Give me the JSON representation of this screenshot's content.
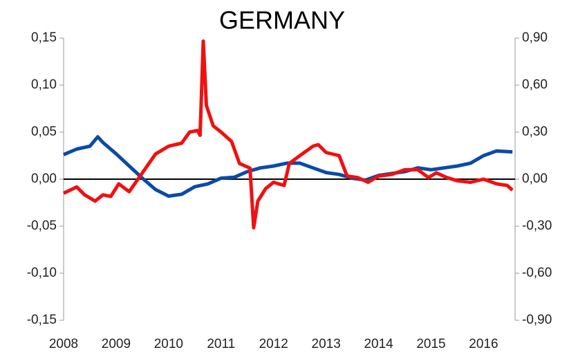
{
  "chart_data": {
    "type": "line",
    "title": "GERMANY",
    "xlim": [
      2008,
      2016.6
    ],
    "xticks": [
      2008,
      2009,
      2010,
      2011,
      2012,
      2013,
      2014,
      2015,
      2016
    ],
    "ylim": [
      -0.15,
      0.15
    ],
    "yticks": [
      {
        "value": -0.15,
        "label": "-0,15"
      },
      {
        "value": -0.1,
        "label": "-0,10"
      },
      {
        "value": -0.05,
        "label": "-0,05"
      },
      {
        "value": 0,
        "label": "0,00"
      },
      {
        "value": 0.05,
        "label": "0,05"
      },
      {
        "value": 0.1,
        "label": "0,10"
      },
      {
        "value": 0.15,
        "label": "0,15"
      }
    ],
    "y2lim": [
      -0.9,
      0.9
    ],
    "y2ticks": [
      {
        "value": -0.9,
        "label": "-0,90"
      },
      {
        "value": -0.6,
        "label": "-0,60"
      },
      {
        "value": -0.3,
        "label": "-0,30"
      },
      {
        "value": 0,
        "label": "0,00"
      },
      {
        "value": 0.3,
        "label": "0,30"
      },
      {
        "value": 0.6,
        "label": "0,60"
      },
      {
        "value": 0.9,
        "label": "0,90"
      }
    ],
    "series": [
      {
        "color": "#0b4aa8",
        "axis": "y",
        "x": [
          2008.0,
          2008.25,
          2008.5,
          2008.65,
          2008.75,
          2009.0,
          2009.25,
          2009.5,
          2009.75,
          2010.0,
          2010.25,
          2010.5,
          2010.75,
          2011.0,
          2011.25,
          2011.5,
          2011.75,
          2012.0,
          2012.25,
          2012.5,
          2012.75,
          2013.0,
          2013.25,
          2013.5,
          2013.75,
          2014.0,
          2014.25,
          2014.5,
          2014.75,
          2015.0,
          2015.25,
          2015.5,
          2015.75,
          2016.0,
          2016.25,
          2016.55
        ],
        "values": [
          0.026,
          0.032,
          0.035,
          0.045,
          0.039,
          0.027,
          0.014,
          0.001,
          -0.011,
          -0.018,
          -0.016,
          -0.008,
          -0.005,
          0.001,
          0.002,
          0.008,
          0.012,
          0.014,
          0.017,
          0.017,
          0.012,
          0.007,
          0.005,
          0.001,
          -0.001,
          0.004,
          0.006,
          0.008,
          0.012,
          0.01,
          0.012,
          0.014,
          0.017,
          0.025,
          0.03,
          0.029
        ]
      },
      {
        "color": "#f01010",
        "axis": "y2",
        "x": [
          2008.0,
          2008.25,
          2008.4,
          2008.6,
          2008.75,
          2008.9,
          2009.05,
          2009.25,
          2009.5,
          2009.75,
          2010.0,
          2010.25,
          2010.4,
          2010.55,
          2010.6,
          2010.66,
          2010.72,
          2010.85,
          2011.0,
          2011.2,
          2011.35,
          2011.55,
          2011.62,
          2011.7,
          2011.85,
          2012.0,
          2012.2,
          2012.3,
          2012.5,
          2012.75,
          2012.85,
          2013.0,
          2013.25,
          2013.4,
          2013.6,
          2013.8,
          2014.0,
          2014.25,
          2014.5,
          2014.75,
          2014.95,
          2015.1,
          2015.3,
          2015.5,
          2015.75,
          2016.0,
          2016.25,
          2016.45,
          2016.55
        ],
        "values": [
          -0.09,
          -0.05,
          -0.1,
          -0.14,
          -0.1,
          -0.11,
          -0.03,
          -0.08,
          0.04,
          0.16,
          0.21,
          0.23,
          0.3,
          0.31,
          0.28,
          0.88,
          0.47,
          0.34,
          0.3,
          0.24,
          0.1,
          0.07,
          -0.31,
          -0.14,
          -0.06,
          -0.02,
          -0.04,
          0.1,
          0.15,
          0.21,
          0.22,
          0.17,
          0.15,
          0.02,
          0.01,
          -0.02,
          0.02,
          0.03,
          0.06,
          0.06,
          0.01,
          0.04,
          0.01,
          -0.01,
          -0.02,
          0,
          -0.03,
          -0.04,
          -0.07
        ]
      }
    ]
  }
}
